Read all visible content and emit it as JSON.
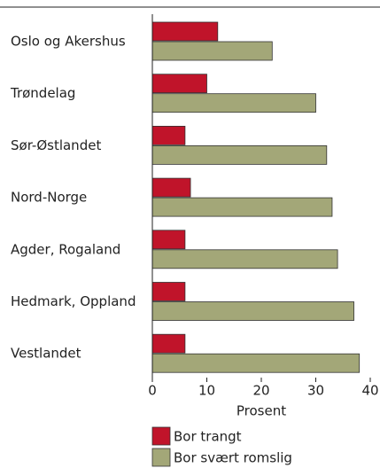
{
  "chart_data": {
    "type": "barh",
    "xlabel": "Prosent",
    "categories": [
      "Oslo og Akershus",
      "Trøndelag",
      "Sør-Østlandet",
      "Nord-Norge",
      "Agder, Rogaland",
      "Hedmark, Oppland",
      "Vestlandet"
    ],
    "series": [
      {
        "name": "Bor trangt",
        "color": "#c0142a",
        "values": [
          12,
          10,
          6,
          7,
          6,
          6,
          6
        ]
      },
      {
        "name": "Bor svært romslig",
        "color": "#a3a778",
        "values": [
          22,
          30,
          32,
          33,
          34,
          37,
          38
        ]
      }
    ],
    "xlim": [
      0,
      40
    ],
    "xticks": [
      0,
      10,
      20,
      30,
      40
    ]
  }
}
